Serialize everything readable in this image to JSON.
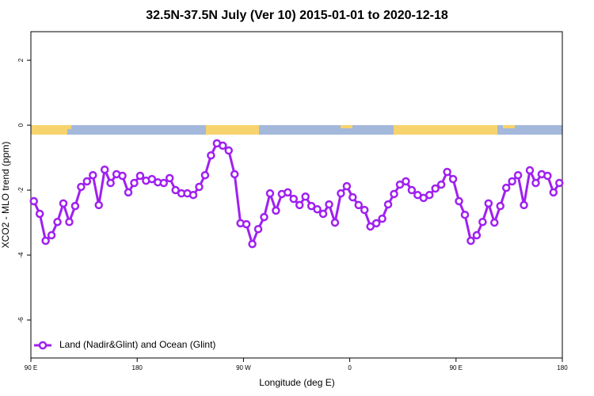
{
  "chart_data": {
    "type": "line",
    "title": "32.5N-37.5N July (Ver 10)   2015-01-01 to 2020-12-18",
    "x_label": "Longitude (deg E)",
    "y_label": "XCO2 - MLO trend (ppm)",
    "xlim": [
      90,
      540
    ],
    "ylim": [
      -7.17,
      2.88
    ],
    "xticks": [
      {
        "value": 90,
        "label": "90 E"
      },
      180,
      {
        "value": 270,
        "label": "90 W"
      },
      {
        "value": 360,
        "label": "0"
      },
      {
        "value": 450,
        "label": "90 E"
      },
      {
        "value": 540,
        "label": "180"
      }
    ],
    "yticks": [
      -6,
      -4,
      -2,
      0,
      2
    ],
    "legend": "bottom-left",
    "x": [
      92.5,
      97.5,
      102.5,
      107.5,
      112.5,
      117.5,
      122.5,
      127.5,
      132.5,
      137.5,
      142.5,
      147.5,
      152.5,
      157.5,
      162.5,
      167.5,
      172.5,
      177.5,
      182.5,
      187.5,
      192.5,
      197.5,
      202.5,
      207.5,
      212.5,
      217.5,
      222.5,
      227.5,
      232.5,
      237.5,
      242.5,
      247.5,
      252.5,
      257.5,
      262.5,
      267.5,
      272.5,
      277.5,
      282.5,
      287.5,
      292.5,
      297.5,
      302.5,
      307.5,
      312.5,
      317.5,
      322.5,
      327.5,
      332.5,
      337.5,
      342.5,
      347.5,
      352.5,
      357.5,
      362.5,
      367.5,
      372.5,
      377.5,
      382.5,
      387.5,
      392.5,
      397.5,
      402.5,
      407.5,
      412.5,
      417.5,
      422.5,
      427.5,
      432.5,
      437.5,
      442.5,
      447.5,
      452.5,
      457.5,
      462.5,
      467.5,
      472.5,
      477.5,
      482.5,
      487.5,
      492.5,
      497.5,
      502.5,
      507.5,
      512.5,
      517.5,
      522.5,
      527.5,
      532.5,
      537.5
    ],
    "series": [
      {
        "name": "Land (Nadir&Glint) and Ocean (Glint)",
        "color": "#a020f0",
        "values": [
          -2.34,
          -2.73,
          -3.56,
          -3.39,
          -2.98,
          -2.41,
          -2.98,
          -2.49,
          -1.9,
          -1.73,
          -1.54,
          -2.46,
          -1.37,
          -1.78,
          -1.51,
          -1.56,
          -2.07,
          -1.78,
          -1.56,
          -1.71,
          -1.66,
          -1.76,
          -1.78,
          -1.63,
          -2.0,
          -2.1,
          -2.1,
          -2.15,
          -1.9,
          -1.54,
          -0.93,
          -0.56,
          -0.63,
          -0.78,
          -1.51,
          -3.02,
          -3.05,
          -3.66,
          -3.2,
          -2.83,
          -2.1,
          -2.63,
          -2.12,
          -2.07,
          -2.27,
          -2.46,
          -2.2,
          -2.49,
          -2.59,
          -2.73,
          -2.44,
          -3.0,
          -2.1,
          -1.88,
          -2.22,
          -2.46,
          -2.61,
          -3.12,
          -3.02,
          -2.88,
          -2.44,
          -2.12,
          -1.83,
          -1.73,
          -2.0,
          -2.15,
          -2.24,
          -2.15,
          -1.95,
          -1.83,
          -1.44,
          -1.66,
          -2.34,
          -2.76,
          -3.56,
          -3.39,
          -2.98,
          -2.41,
          -3.0,
          -2.49,
          -1.93,
          -1.73,
          -1.54,
          -2.46,
          -1.39,
          -1.78,
          -1.51,
          -1.56,
          -2.07,
          -1.78
        ]
      }
    ]
  }
}
